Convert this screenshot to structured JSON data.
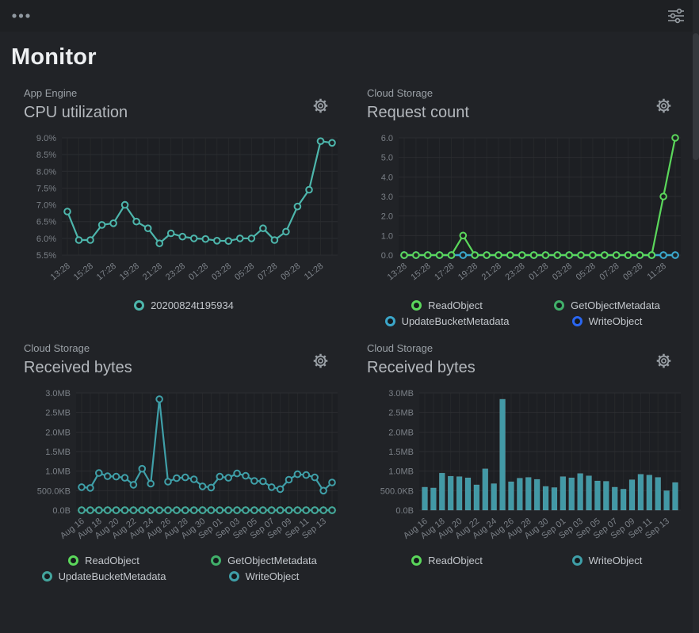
{
  "header": {
    "title": "Monitor",
    "icons": {
      "top_left": "ellipsis-menu",
      "top_right": "filter-sliders",
      "panel_action": "gear",
      "legend_marker": "ring-circle"
    }
  },
  "colors": {
    "background": "#212327",
    "topbar": "#1e2023",
    "grid": "#2b2d31",
    "axis_text": "#7b8087",
    "teal_line": "#4db6ac",
    "read_object_green": "#5bd75b",
    "get_object_metadata_green": "#41b06a",
    "update_bucket_cyan": "#3ba6c9",
    "write_object_blue": "#2a66f0",
    "storage_teal": "#3f9fa8",
    "bar_teal": "#4299a6"
  },
  "chart_data": [
    {
      "type": "line",
      "subtitle": "App Engine",
      "title": "CPU utilization",
      "n_points": 24,
      "ylim": [
        5.5,
        9.0
      ],
      "y_unit": "%",
      "grid": true,
      "legend_position": "bottom",
      "y_ticks": [
        {
          "label": "5.5%",
          "v": 5.5
        },
        {
          "label": "6.0%",
          "v": 6.0
        },
        {
          "label": "6.5%",
          "v": 6.5
        },
        {
          "label": "7.0%",
          "v": 7.0
        },
        {
          "label": "7.5%",
          "v": 7.5
        },
        {
          "label": "8.0%",
          "v": 8.0
        },
        {
          "label": "8.5%",
          "v": 8.5
        },
        {
          "label": "9.0%",
          "v": 9.0
        }
      ],
      "x_ticks": [
        {
          "i": 0,
          "label": "13:28"
        },
        {
          "i": 2,
          "label": "15:28"
        },
        {
          "i": 4,
          "label": "17:28"
        },
        {
          "i": 6,
          "label": "19:28"
        },
        {
          "i": 8,
          "label": "21:28"
        },
        {
          "i": 10,
          "label": "23:28"
        },
        {
          "i": 12,
          "label": "01:28"
        },
        {
          "i": 14,
          "label": "03:28"
        },
        {
          "i": 16,
          "label": "05:28"
        },
        {
          "i": 18,
          "label": "07:28"
        },
        {
          "i": 20,
          "label": "09:28"
        },
        {
          "i": 22,
          "label": "11:28"
        }
      ],
      "series": [
        {
          "name": "20200824t195934",
          "color": "#4db6ac",
          "values": [
            6.8,
            5.95,
            5.95,
            6.4,
            6.45,
            7.0,
            6.5,
            6.3,
            5.85,
            6.15,
            6.05,
            6.0,
            5.98,
            5.93,
            5.92,
            6.0,
            6.0,
            6.3,
            5.95,
            6.2,
            6.95,
            7.45,
            8.9,
            8.85
          ]
        }
      ],
      "legend": [
        {
          "label": "20200824t195934",
          "color": "#4db6ac"
        }
      ],
      "legend_cols": 1
    },
    {
      "type": "line",
      "subtitle": "Cloud Storage",
      "title": "Request count",
      "n_points": 24,
      "ylim": [
        0,
        6
      ],
      "y_unit": "count",
      "grid": true,
      "legend_position": "bottom",
      "y_ticks": [
        {
          "label": "0.0",
          "v": 0
        },
        {
          "label": "1.0",
          "v": 1
        },
        {
          "label": "2.0",
          "v": 2
        },
        {
          "label": "3.0",
          "v": 3
        },
        {
          "label": "4.0",
          "v": 4
        },
        {
          "label": "5.0",
          "v": 5
        },
        {
          "label": "6.0",
          "v": 6
        }
      ],
      "x_ticks": [
        {
          "i": 0,
          "label": "13:28"
        },
        {
          "i": 2,
          "label": "15:28"
        },
        {
          "i": 4,
          "label": "17:28"
        },
        {
          "i": 6,
          "label": "19:28"
        },
        {
          "i": 8,
          "label": "21:28"
        },
        {
          "i": 10,
          "label": "23:28"
        },
        {
          "i": 12,
          "label": "01:28"
        },
        {
          "i": 14,
          "label": "03:28"
        },
        {
          "i": 16,
          "label": "05:28"
        },
        {
          "i": 18,
          "label": "07:28"
        },
        {
          "i": 20,
          "label": "09:28"
        },
        {
          "i": 22,
          "label": "11:28"
        }
      ],
      "series": [
        {
          "name": "GetObjectMetadata",
          "color": "#41b06a",
          "values": [
            0,
            0,
            0,
            0,
            0,
            0,
            0,
            0,
            0,
            0,
            0,
            0,
            0,
            0,
            0,
            0,
            0,
            0,
            0,
            0,
            0,
            0,
            0,
            0
          ]
        },
        {
          "name": "WriteObject",
          "color": "#2a66f0",
          "values": [
            0,
            0,
            0,
            0,
            0,
            0,
            0,
            0,
            0,
            0,
            0,
            0,
            0,
            0,
            0,
            0,
            0,
            0,
            0,
            0,
            0,
            0,
            0,
            0
          ]
        },
        {
          "name": "UpdateBucketMetadata",
          "color": "#3ba6c9",
          "values": [
            0,
            0,
            0,
            0,
            0,
            0,
            0,
            0,
            0,
            0,
            0,
            0,
            0,
            0,
            0,
            0,
            0,
            0,
            0,
            0,
            0,
            0,
            0,
            0
          ]
        },
        {
          "name": "ReadObject",
          "color": "#5bd75b",
          "values": [
            0,
            0,
            0,
            0,
            0,
            1,
            0,
            0,
            0,
            0,
            0,
            0,
            0,
            0,
            0,
            0,
            0,
            0,
            0,
            0,
            0,
            0,
            3,
            6
          ]
        }
      ],
      "legend": [
        {
          "label": "ReadObject",
          "color": "#5bd75b"
        },
        {
          "label": "GetObjectMetadata",
          "color": "#41b06a"
        },
        {
          "label": "UpdateBucketMetadata",
          "color": "#3ba6c9"
        },
        {
          "label": "WriteObject",
          "color": "#2a66f0"
        }
      ],
      "legend_cols": 2
    },
    {
      "type": "line",
      "subtitle": "Cloud Storage",
      "title": "Received bytes",
      "n_points": 30,
      "ylim": [
        0,
        3000
      ],
      "y_unit": "KB",
      "grid": true,
      "legend_position": "bottom",
      "y_ticks": [
        {
          "label": "0.0B",
          "v": 0
        },
        {
          "label": "500.0KB",
          "v": 500
        },
        {
          "label": "1.0MB",
          "v": 1000
        },
        {
          "label": "1.5MB",
          "v": 1500
        },
        {
          "label": "2.0MB",
          "v": 2000
        },
        {
          "label": "2.5MB",
          "v": 2500
        },
        {
          "label": "3.0MB",
          "v": 3000
        }
      ],
      "x_ticks": [
        {
          "i": 0,
          "label": "Aug 16"
        },
        {
          "i": 2,
          "label": "Aug 18"
        },
        {
          "i": 4,
          "label": "Aug 20"
        },
        {
          "i": 6,
          "label": "Aug 22"
        },
        {
          "i": 8,
          "label": "Aug 24"
        },
        {
          "i": 10,
          "label": "Aug 26"
        },
        {
          "i": 12,
          "label": "Aug 28"
        },
        {
          "i": 14,
          "label": "Aug 30"
        },
        {
          "i": 16,
          "label": "Sep 01"
        },
        {
          "i": 18,
          "label": "Sep 03"
        },
        {
          "i": 20,
          "label": "Sep 05"
        },
        {
          "i": 22,
          "label": "Sep 07"
        },
        {
          "i": 24,
          "label": "Sep 09"
        },
        {
          "i": 26,
          "label": "Sep 11"
        },
        {
          "i": 28,
          "label": "Sep 13"
        }
      ],
      "series": [
        {
          "name": "GetObjectMetadata",
          "color": "#41b06a",
          "values": [
            0,
            0,
            0,
            0,
            0,
            0,
            0,
            0,
            0,
            0,
            0,
            0,
            0,
            0,
            0,
            0,
            0,
            0,
            0,
            0,
            0,
            0,
            0,
            0,
            0,
            0,
            0,
            0,
            0,
            0
          ]
        },
        {
          "name": "ReadObject",
          "color": "#5bd75b",
          "values": [
            0,
            0,
            0,
            0,
            0,
            0,
            0,
            0,
            0,
            0,
            0,
            0,
            0,
            0,
            0,
            0,
            0,
            0,
            0,
            0,
            0,
            0,
            0,
            0,
            0,
            0,
            0,
            0,
            0,
            0
          ]
        },
        {
          "name": "UpdateBucketMetadata",
          "color": "#43a59d",
          "values": [
            0,
            0,
            0,
            0,
            0,
            0,
            0,
            0,
            0,
            0,
            0,
            0,
            0,
            0,
            0,
            0,
            0,
            0,
            0,
            0,
            0,
            0,
            0,
            0,
            0,
            0,
            0,
            0,
            0,
            0
          ]
        },
        {
          "name": "WriteObject",
          "color": "#3f9fa8",
          "values": [
            590,
            570,
            950,
            870,
            860,
            830,
            650,
            1060,
            680,
            2840,
            730,
            820,
            840,
            790,
            610,
            580,
            860,
            830,
            940,
            880,
            750,
            740,
            590,
            540,
            780,
            920,
            900,
            840,
            500,
            710
          ]
        }
      ],
      "legend": [
        {
          "label": "ReadObject",
          "color": "#5bd75b"
        },
        {
          "label": "GetObjectMetadata",
          "color": "#41b06a"
        },
        {
          "label": "UpdateBucketMetadata",
          "color": "#43a59d"
        },
        {
          "label": "WriteObject",
          "color": "#3f9fa8"
        }
      ],
      "legend_cols": 2
    },
    {
      "type": "bar",
      "subtitle": "Cloud Storage",
      "title": "Received bytes",
      "n_points": 30,
      "ylim": [
        0,
        3000
      ],
      "y_unit": "KB",
      "grid": true,
      "legend_position": "bottom",
      "y_ticks": [
        {
          "label": "0.0B",
          "v": 0
        },
        {
          "label": "500.0KB",
          "v": 500
        },
        {
          "label": "1.0MB",
          "v": 1000
        },
        {
          "label": "1.5MB",
          "v": 1500
        },
        {
          "label": "2.0MB",
          "v": 2000
        },
        {
          "label": "2.5MB",
          "v": 2500
        },
        {
          "label": "3.0MB",
          "v": 3000
        }
      ],
      "x_ticks": [
        {
          "i": 0,
          "label": "Aug 16"
        },
        {
          "i": 2,
          "label": "Aug 18"
        },
        {
          "i": 4,
          "label": "Aug 20"
        },
        {
          "i": 6,
          "label": "Aug 22"
        },
        {
          "i": 8,
          "label": "Aug 24"
        },
        {
          "i": 10,
          "label": "Aug 26"
        },
        {
          "i": 12,
          "label": "Aug 28"
        },
        {
          "i": 14,
          "label": "Aug 30"
        },
        {
          "i": 16,
          "label": "Sep 01"
        },
        {
          "i": 18,
          "label": "Sep 03"
        },
        {
          "i": 20,
          "label": "Sep 05"
        },
        {
          "i": 22,
          "label": "Sep 07"
        },
        {
          "i": 24,
          "label": "Sep 09"
        },
        {
          "i": 26,
          "label": "Sep 11"
        },
        {
          "i": 28,
          "label": "Sep 13"
        }
      ],
      "series": [
        {
          "name": "ReadObject",
          "color": "#5bd75b",
          "values": [
            0,
            0,
            0,
            0,
            0,
            0,
            0,
            0,
            0,
            0,
            0,
            0,
            0,
            0,
            0,
            0,
            0,
            0,
            0,
            0,
            0,
            0,
            0,
            0,
            0,
            0,
            0,
            0,
            0,
            0
          ]
        },
        {
          "name": "WriteObject",
          "color": "#4299a6",
          "values": [
            590,
            570,
            950,
            870,
            860,
            830,
            650,
            1060,
            680,
            2840,
            730,
            820,
            840,
            790,
            610,
            580,
            860,
            830,
            940,
            880,
            750,
            740,
            590,
            540,
            780,
            920,
            900,
            840,
            500,
            710
          ]
        }
      ],
      "legend": [
        {
          "label": "ReadObject",
          "color": "#5bd75b"
        },
        {
          "label": "WriteObject",
          "color": "#3f9fa8"
        }
      ],
      "legend_cols": 2
    }
  ]
}
